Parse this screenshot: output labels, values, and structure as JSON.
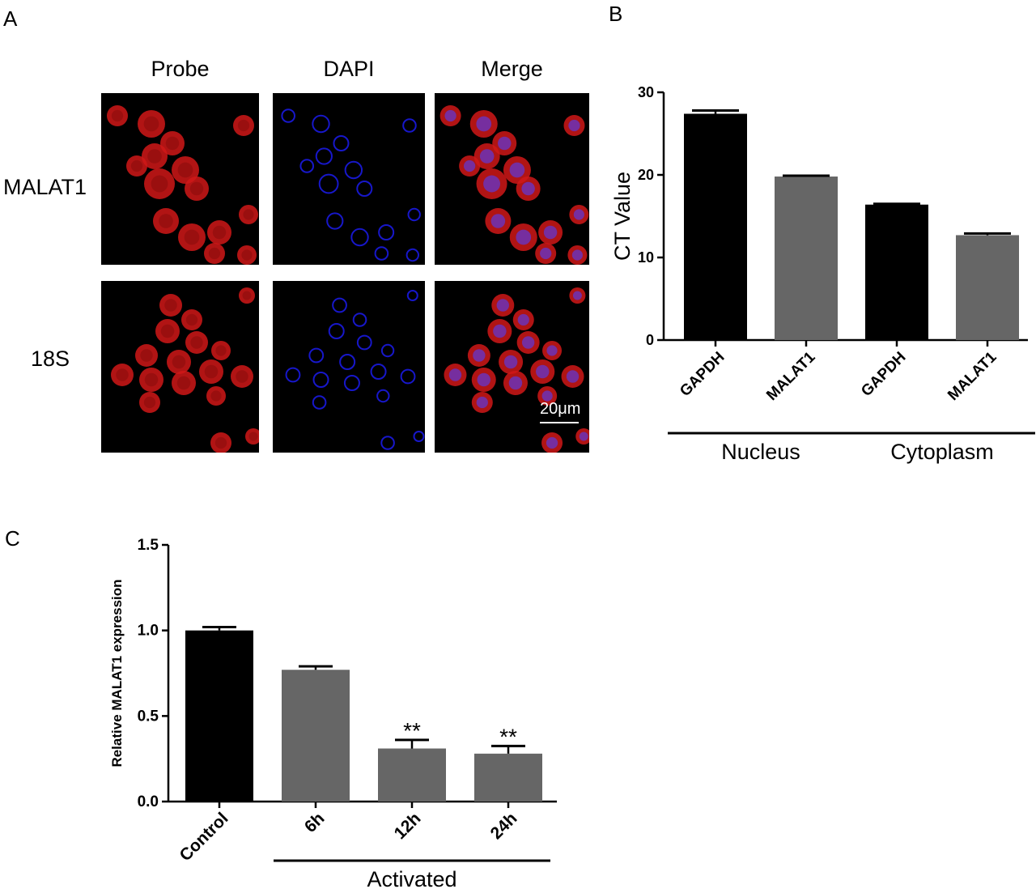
{
  "figure": {
    "panel_a": {
      "letter": "A",
      "columns": [
        "Probe",
        "DAPI",
        "Merge"
      ],
      "rows": [
        "MALAT1",
        "18S"
      ],
      "scale_bar": "20μm",
      "colors": {
        "probe": "#d01818",
        "dapi": "#1a1ae0",
        "background": "#000000"
      }
    },
    "panel_b_letter": "B",
    "panel_c_letter": "C"
  },
  "chart_data": [
    {
      "id": "B",
      "type": "bar",
      "categories": [
        "GAPDH",
        "MALAT1",
        "GAPDH",
        "MALAT1"
      ],
      "values": [
        27.4,
        19.8,
        16.4,
        12.7
      ],
      "errors": [
        0.4,
        0.1,
        0.1,
        0.2
      ],
      "colors": [
        "#000000",
        "#666666",
        "#000000",
        "#666666"
      ],
      "groups": [
        {
          "label": "Nucleus",
          "categories": [
            0,
            1
          ]
        },
        {
          "label": "Cytoplasm",
          "categories": [
            2,
            3
          ]
        }
      ],
      "title": "",
      "xlabel": "",
      "ylabel": "CT Value",
      "ylim": [
        0,
        30
      ],
      "yticks": [
        "0",
        "10",
        "20",
        "30"
      ],
      "grid": false
    },
    {
      "id": "C",
      "type": "bar",
      "categories": [
        "Control",
        "6h",
        "12h",
        "24h"
      ],
      "values": [
        1.0,
        0.77,
        0.31,
        0.28
      ],
      "errors": [
        0.02,
        0.02,
        0.05,
        0.045
      ],
      "colors": [
        "#000000",
        "#666666",
        "#666666",
        "#666666"
      ],
      "annotations": [
        "",
        "",
        "**",
        "**"
      ],
      "groups": [
        {
          "label": "Activated",
          "categories": [
            1,
            2,
            3
          ]
        }
      ],
      "title": "",
      "xlabel": "",
      "ylabel": "Relative MALAT1 expression",
      "ylim": [
        0,
        1.5
      ],
      "yticks": [
        "0.0",
        "0.5",
        "1.0",
        "1.5"
      ],
      "grid": false
    }
  ]
}
